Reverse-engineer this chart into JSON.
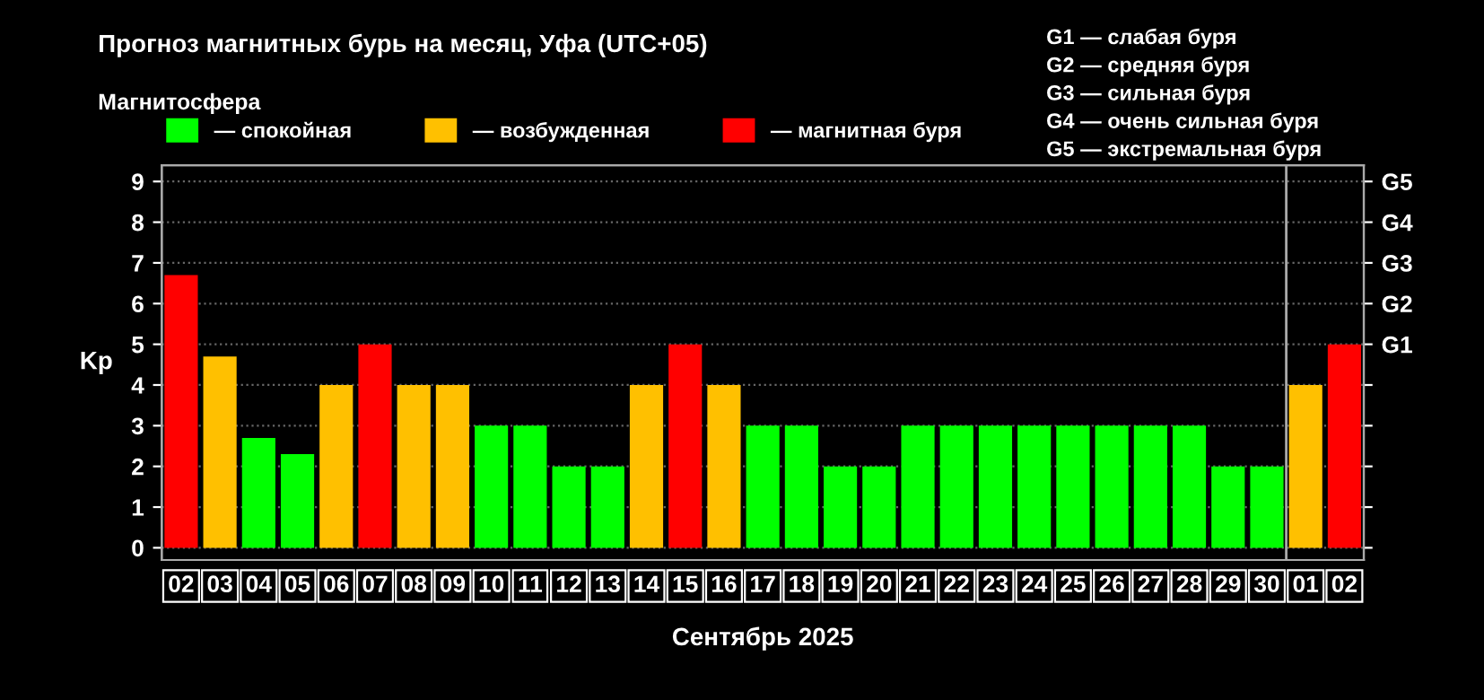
{
  "chart_data": {
    "type": "bar",
    "title": "Прогноз магнитных бурь на месяц, Уфа (UTC+05)",
    "legend_title": "Магнитосфера",
    "xlabel": "Сентябрь 2025",
    "ylabel": "Kp",
    "categories": [
      "02",
      "03",
      "04",
      "05",
      "06",
      "07",
      "08",
      "09",
      "10",
      "11",
      "12",
      "13",
      "14",
      "15",
      "16",
      "17",
      "18",
      "19",
      "20",
      "21",
      "22",
      "23",
      "24",
      "25",
      "26",
      "27",
      "28",
      "29",
      "30",
      "01",
      "02"
    ],
    "series": [
      {
        "name": "— спокойная",
        "color": "#00ff00",
        "values": [
          null,
          null,
          2.7,
          2.3,
          null,
          null,
          null,
          null,
          3,
          3,
          2,
          2,
          null,
          null,
          null,
          3,
          3,
          2,
          2,
          3,
          3,
          3,
          3,
          3,
          3,
          3,
          3,
          2,
          2,
          null,
          null
        ]
      },
      {
        "name": "— возбужденная",
        "color": "#ffc000",
        "values": [
          null,
          4.7,
          null,
          null,
          4,
          null,
          4,
          4,
          null,
          null,
          null,
          null,
          4,
          null,
          4,
          null,
          null,
          null,
          null,
          null,
          null,
          null,
          null,
          null,
          null,
          null,
          null,
          null,
          null,
          4,
          null
        ]
      },
      {
        "name": "— магнитная буря",
        "color": "#ff0000",
        "values": [
          6.7,
          null,
          null,
          null,
          null,
          5,
          null,
          null,
          null,
          null,
          null,
          null,
          null,
          5,
          null,
          null,
          null,
          null,
          null,
          null,
          null,
          null,
          null,
          null,
          null,
          null,
          null,
          null,
          null,
          null,
          5
        ]
      }
    ],
    "ylim": [
      -0.3,
      9.4
    ],
    "yticks": [
      0,
      1,
      2,
      3,
      4,
      5,
      6,
      7,
      8,
      9
    ],
    "grid": "y",
    "legend": "top left",
    "ref_lines": [
      {
        "axis": "x",
        "value": "01",
        "color": "#aaaaaa"
      }
    ],
    "annotations": [
      "G1 — слабая буря",
      "G2 — средняя буря",
      "G3 — сильная буря",
      "G4 — очень сильная буря",
      "G5 — экстремальная буря"
    ],
    "y2_categories": [
      "G5",
      "G4",
      "G3",
      "G2",
      "G1",
      null,
      null,
      null,
      null,
      null
    ]
  }
}
